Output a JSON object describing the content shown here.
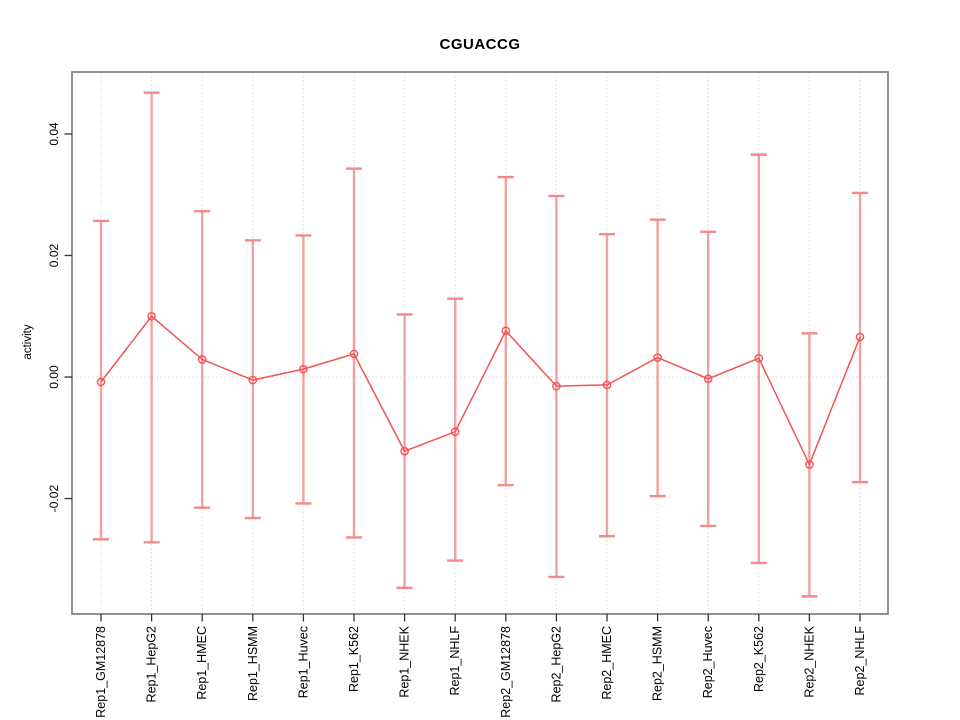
{
  "chart_data": {
    "type": "line",
    "subtype": "points-with-error-bars",
    "title": "CGUACCG",
    "xlabel": "",
    "ylabel": "activity",
    "categories": [
      "Rep1_GM12878",
      "Rep1_HepG2",
      "Rep1_HMEC",
      "Rep1_HSMM",
      "Rep1_Huvec",
      "Rep1_K562",
      "Rep1_NHEK",
      "Rep1_NHLF",
      "Rep2_GM12878",
      "Rep2_HepG2",
      "Rep2_HMEC",
      "Rep2_HSMM",
      "Rep2_Huvec",
      "Rep2_K562",
      "Rep2_NHEK",
      "Rep2_NHLF"
    ],
    "series": [
      {
        "name": "activity",
        "values": [
          -0.0008,
          0.01,
          0.0029,
          -0.0005,
          0.0013,
          0.0038,
          -0.0122,
          -0.009,
          0.0076,
          -0.0015,
          -0.0013,
          0.0032,
          -0.0003,
          0.0031,
          -0.0144,
          0.0066
        ],
        "upper": [
          0.0257,
          0.0468,
          0.0273,
          0.0225,
          0.0233,
          0.0343,
          0.0103,
          0.0129,
          0.0329,
          0.0298,
          0.0235,
          0.0259,
          0.0239,
          0.0366,
          0.0072,
          0.0303
        ],
        "lower": [
          -0.0267,
          -0.0272,
          -0.0215,
          -0.0232,
          -0.0208,
          -0.0264,
          -0.0347,
          -0.0302,
          -0.0178,
          -0.0329,
          -0.0262,
          -0.0196,
          -0.0245,
          -0.0306,
          -0.0361,
          -0.0173
        ]
      }
    ],
    "yticks": [
      -0.02,
      0,
      0.02,
      0.04
    ],
    "ytick_labels": [
      "-0.02",
      "0.00",
      "0.02",
      "0.04"
    ],
    "ylim": [
      -0.039,
      0.0502
    ],
    "grid": "vertical-dotted-per-category-and-dotted-zero-line",
    "legend": "none",
    "colors": {
      "point_and_line": "#f25454",
      "error_bar": "#f5a0a0",
      "error_cap": "#f28a8a",
      "gridline": "#d9d9d9",
      "zero_line": "#d9d9d9",
      "plot_border": "#777777",
      "tick_mark": "#333333",
      "text": "#000000"
    }
  }
}
